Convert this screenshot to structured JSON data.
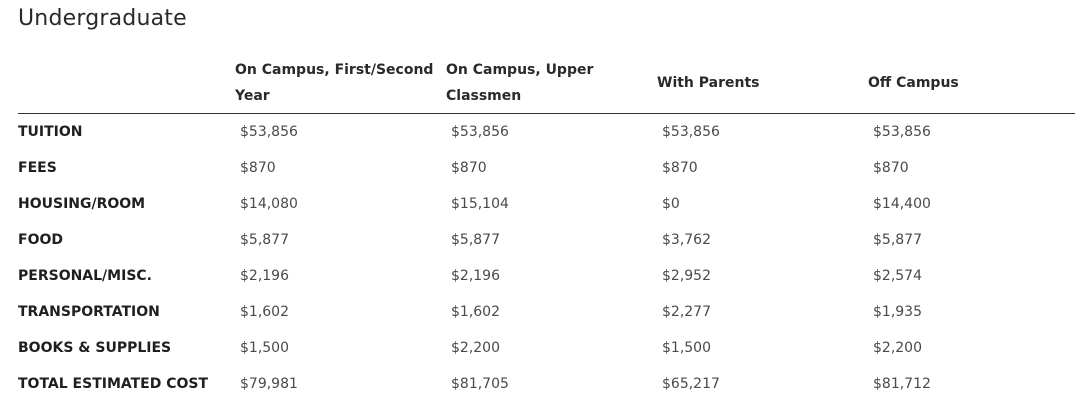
{
  "page_title": "Undergraduate",
  "columns": [
    "",
    "On Campus, First/Second Year",
    "On Campus, Upper Classmen",
    "With Parents",
    "Off Campus"
  ],
  "rows": [
    {
      "label": "TUITION",
      "values": [
        "$53,856",
        "$53,856",
        "$53,856",
        "$53,856"
      ]
    },
    {
      "label": "FEES",
      "values": [
        "$870",
        "$870",
        "$870",
        "$870"
      ]
    },
    {
      "label": "HOUSING/ROOM",
      "values": [
        "$14,080",
        "$15,104",
        "$0",
        "$14,400"
      ]
    },
    {
      "label": "FOOD",
      "values": [
        "$5,877",
        "$5,877",
        "$3,762",
        "$5,877"
      ]
    },
    {
      "label": "PERSONAL/MISC.",
      "values": [
        "$2,196",
        "$2,196",
        "$2,952",
        "$2,574"
      ]
    },
    {
      "label": "TRANSPORTATION",
      "values": [
        "$1,602",
        "$1,602",
        "$2,277",
        "$1,935"
      ]
    },
    {
      "label": "BOOKS & SUPPLIES",
      "values": [
        "$1,500",
        "$2,200",
        "$1,500",
        "$2,200"
      ]
    },
    {
      "label": "TOTAL ESTIMATED COST",
      "values": [
        "$79,981",
        "$81,705",
        "$65,217",
        "$81,712"
      ]
    }
  ]
}
